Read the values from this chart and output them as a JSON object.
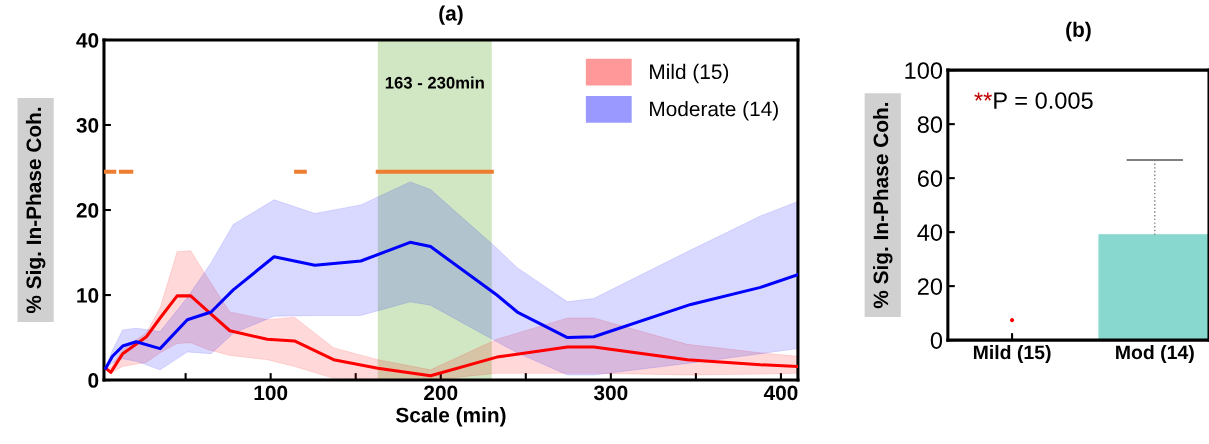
{
  "chart_data": [
    {
      "type": "line",
      "title": "(a)",
      "xlabel": "Scale (min)",
      "ylabel": "% Sig. In-Phase Coh.",
      "xlim": [
        2,
        410
      ],
      "ylim": [
        0,
        40
      ],
      "xticks": [
        {
          "value": 50,
          "label": null
        },
        100,
        {
          "value": 150,
          "label": null
        },
        200,
        {
          "value": 250,
          "label": null
        },
        300,
        {
          "value": 350,
          "label": null
        },
        400
      ],
      "yticks": [
        0,
        10,
        20,
        30,
        40
      ],
      "grid": false,
      "legend": "top right",
      "bands": [
        {
          "axis": "x",
          "from": 163,
          "to": 230,
          "label": "163 - 230min",
          "color": "#c5e0b4"
        }
      ],
      "series": [
        {
          "name": "Mild (15)",
          "color": "#ff0000",
          "x": [
            3,
            6,
            13,
            27,
            35,
            45,
            53,
            63,
            76,
            98,
            114,
            137,
            163,
            194,
            233,
            274.5,
            290,
            345,
            388,
            410
          ],
          "values": [
            1.4,
            0.9,
            3.1,
            5.1,
            7.3,
            9.9,
            9.9,
            8.1,
            5.8,
            4.8,
            4.6,
            2.4,
            1.4,
            0.5,
            2.7,
            3.9,
            3.9,
            2.4,
            1.8,
            1.6
          ],
          "lower": [
            1.3,
            0.8,
            1.6,
            2.1,
            3.2,
            4.3,
            4.4,
            3.6,
            2.9,
            2.4,
            1.6,
            0.2,
            0.1,
            0.0,
            0.8,
            0.8,
            0.8,
            0.6,
            0.7,
            0.8
          ],
          "upper": [
            1.6,
            1.5,
            3.6,
            5.6,
            8.5,
            15.1,
            15.2,
            12.0,
            8.0,
            7.1,
            7.4,
            3.8,
            2.4,
            1.2,
            4.8,
            7.3,
            7.3,
            4.2,
            3.2,
            2.8
          ]
        },
        {
          "name": "Moderate (14)",
          "color": "#0000ff",
          "x": [
            3,
            7,
            13,
            21,
            35,
            51,
            65,
            78,
            102,
            126,
            153,
            182,
            194,
            233,
            245,
            274.5,
            290,
            347,
            388,
            410
          ],
          "values": [
            1.4,
            2.8,
            4.0,
            4.5,
            3.7,
            7.1,
            8.0,
            10.6,
            14.5,
            13.5,
            14.0,
            16.2,
            15.7,
            10.0,
            8.0,
            5.0,
            5.1,
            8.9,
            10.9,
            12.4
          ],
          "lower": [
            1.3,
            2.0,
            2.5,
            2.2,
            1.2,
            3.3,
            3.1,
            5.5,
            7.5,
            7.6,
            7.6,
            9.2,
            8.8,
            4.5,
            3.2,
            0.6,
            0.6,
            2.0,
            3.1,
            3.7
          ],
          "upper": [
            1.6,
            3.5,
            5.9,
            6.1,
            5.7,
            9.7,
            13.8,
            18.3,
            21.2,
            19.6,
            20.6,
            23.3,
            22.4,
            15.5,
            13.2,
            9.2,
            9.6,
            15.3,
            19.3,
            21.0
          ]
        },
        {
          "color": "#ed7d31",
          "x": [
            3,
            8,
            10,
            12,
            18,
            60,
            115,
            120,
            140,
            163,
            230
          ],
          "values": [
            24.5,
            24.5,
            null,
            24.5,
            24.5,
            null,
            24.5,
            24.5,
            null,
            24.5,
            24.5
          ]
        }
      ]
    },
    {
      "type": "box",
      "ylabel": "% Sig. In-Phase Coh.",
      "title": "(b)",
      "categories": [
        "Mild (15)",
        "Mod (14)"
      ],
      "ylim": [
        0,
        100
      ],
      "yticks": [
        0,
        20,
        40,
        60,
        80,
        100
      ],
      "color": "#88d8d0",
      "boxes": [
        {
          "low": 0,
          "q1": 0,
          "median": 0,
          "q3": 0,
          "high": 0,
          "outliers": [
            7.4
          ]
        },
        {
          "low": 0,
          "q1": 0,
          "median": 0,
          "q3": 39,
          "high": 66.7
        }
      ],
      "annotations": [
        "**",
        "P = 0.005"
      ]
    }
  ]
}
